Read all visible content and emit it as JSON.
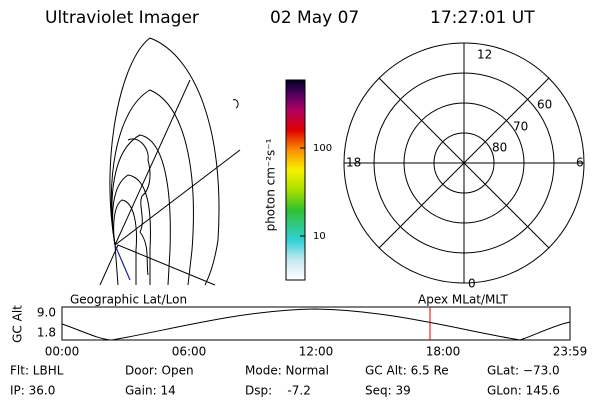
{
  "header": {
    "title": "Ultraviolet Imager",
    "date": "02 May 07",
    "time": "17:27:01 UT"
  },
  "left_panel": {
    "label": "Geographic Lat/Lon"
  },
  "colorbar": {
    "label": "photon cm⁻²s⁻¹",
    "ticks": [
      "100",
      "10"
    ]
  },
  "polar_plot": {
    "label": "Apex MLat/MLT",
    "mlt_labels": [
      "12",
      "18",
      "6",
      "0"
    ],
    "lat_labels": [
      "60",
      "70",
      "80"
    ]
  },
  "altitude_plot": {
    "axis_label": "GC Alt",
    "y_labels": [
      "9.0",
      "1.8"
    ],
    "x_labels": [
      "00:00",
      "06:00",
      "12:00",
      "18:00",
      "23:59"
    ]
  },
  "status": {
    "rows": [
      [
        "Flt: LBHL",
        "Door: Open",
        "Mode: Normal",
        "GC Alt: 6.5 Re",
        "GLat: −73.0"
      ],
      [
        "IP: 36.0",
        "Gain: 14",
        "Dsp:    -7.2",
        "Seq: 39",
        "GLon: 145.6"
      ]
    ]
  }
}
